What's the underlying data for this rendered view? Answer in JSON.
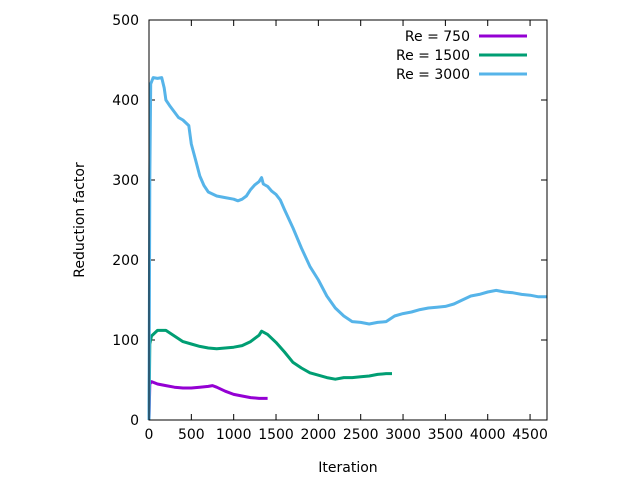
{
  "chart_data": {
    "type": "line",
    "title": "",
    "xlabel": "Iteration",
    "ylabel": "Reduction factor",
    "xlim": [
      0,
      4700
    ],
    "ylim": [
      0,
      500
    ],
    "xticks": [
      0,
      500,
      1000,
      1500,
      2000,
      2500,
      3000,
      3500,
      4000,
      4500
    ],
    "yticks": [
      0,
      100,
      200,
      300,
      400,
      500
    ],
    "grid": false,
    "legend_position": "top-right",
    "series": [
      {
        "name": "Re = 750",
        "color": "#9400d3",
        "x": [
          0,
          10,
          30,
          100,
          200,
          300,
          400,
          500,
          600,
          700,
          750,
          800,
          900,
          1000,
          1100,
          1200,
          1300,
          1400
        ],
        "y": [
          0,
          45,
          48,
          45,
          43,
          41,
          40,
          40,
          41,
          42,
          43,
          41,
          36,
          32,
          30,
          28,
          27,
          27
        ]
      },
      {
        "name": "Re = 1500",
        "color": "#009e73",
        "x": [
          0,
          10,
          30,
          100,
          200,
          300,
          400,
          500,
          600,
          700,
          800,
          900,
          1000,
          1100,
          1200,
          1300,
          1330,
          1400,
          1500,
          1600,
          1700,
          1800,
          1900,
          2000,
          2100,
          2200,
          2300,
          2400,
          2500,
          2600,
          2700,
          2800,
          2870
        ],
        "y": [
          0,
          95,
          105,
          112,
          112,
          105,
          98,
          95,
          92,
          90,
          89,
          90,
          91,
          93,
          98,
          106,
          111,
          107,
          97,
          85,
          72,
          65,
          59,
          56,
          53,
          51,
          53,
          53,
          54,
          55,
          57,
          58,
          58
        ]
      },
      {
        "name": "Re = 3000",
        "color": "#56b4e9",
        "x": [
          0,
          10,
          20,
          50,
          100,
          150,
          180,
          200,
          250,
          300,
          350,
          400,
          450,
          470,
          500,
          550,
          600,
          650,
          700,
          800,
          900,
          1000,
          1050,
          1100,
          1150,
          1200,
          1250,
          1300,
          1330,
          1350,
          1400,
          1450,
          1500,
          1550,
          1600,
          1700,
          1800,
          1900,
          2000,
          2100,
          2200,
          2300,
          2400,
          2500,
          2600,
          2700,
          2800,
          2900,
          3000,
          3100,
          3200,
          3300,
          3400,
          3500,
          3600,
          3700,
          3800,
          3900,
          4000,
          4100,
          4200,
          4300,
          4400,
          4500,
          4600,
          4700
        ],
        "y": [
          0,
          300,
          420,
          428,
          427,
          428,
          415,
          400,
          392,
          385,
          378,
          375,
          370,
          368,
          345,
          325,
          305,
          293,
          285,
          280,
          278,
          276,
          274,
          276,
          280,
          288,
          294,
          298,
          303,
          295,
          292,
          286,
          282,
          275,
          263,
          240,
          215,
          192,
          175,
          155,
          140,
          130,
          123,
          122,
          120,
          122,
          123,
          130,
          133,
          135,
          138,
          140,
          141,
          142,
          145,
          150,
          155,
          157,
          160,
          162,
          160,
          159,
          157,
          156,
          154,
          154
        ]
      }
    ]
  }
}
